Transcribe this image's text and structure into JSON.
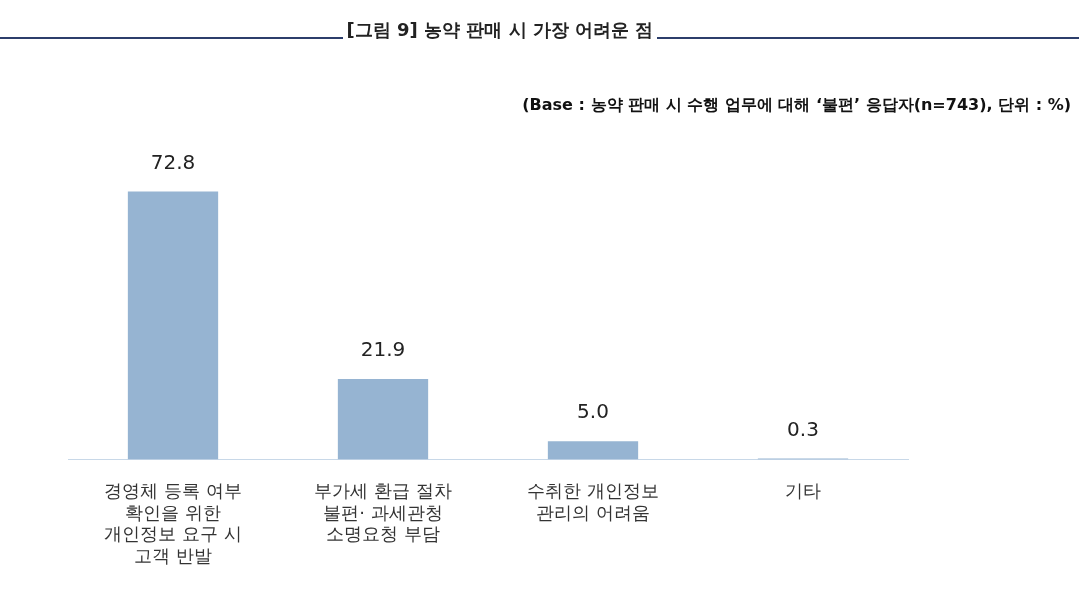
{
  "chart_data": {
    "type": "bar",
    "title": "[그림 9] 농약 판매 시 가장 어려운 점",
    "subtitle": "(Base : 농약 판매 시 수행 업무에 대해 ‘불편’ 응답자(n=743), 단위 : %)",
    "categories": [
      "경영체 등록 여부\n확인을 위한\n개인정보 요구 시\n고객 반발",
      "부가세 환급 절차\n불편· 과세관청\n소명요청 부담",
      "수취한 개인정보\n관리의 어려움",
      "기타"
    ],
    "values": [
      72.8,
      21.9,
      5.0,
      0.3
    ],
    "value_labels": [
      "72.8",
      "21.9",
      "5.0",
      "0.3"
    ],
    "color": "#96b4d2",
    "grid": false,
    "legend": false
  }
}
